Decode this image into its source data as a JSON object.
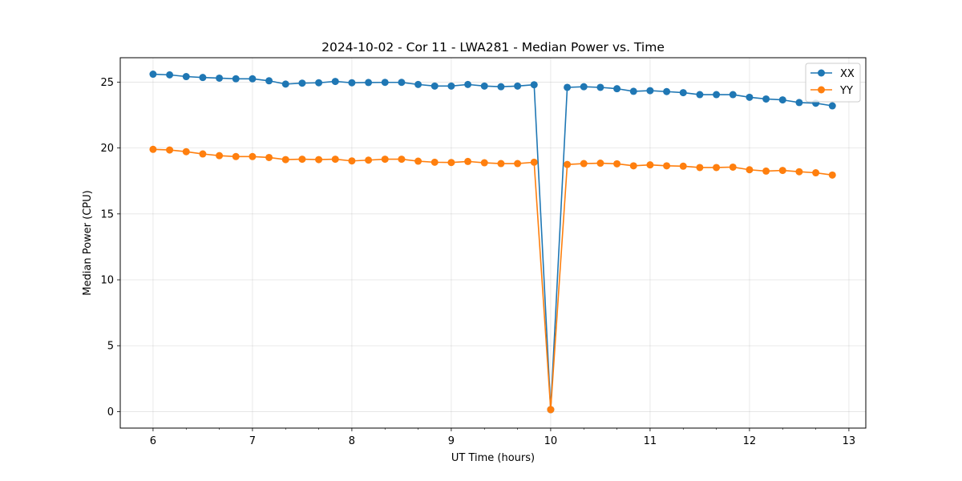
{
  "chart_data": {
    "type": "line",
    "title": "2024-10-02 - Cor 11 - LWA281 - Median Power vs. Time",
    "xlabel": "UT Time (hours)",
    "ylabel": "Median Power (CPU)",
    "xlim": [
      5.67,
      13.17
    ],
    "ylim": [
      -1.25,
      26.85
    ],
    "xticks": [
      6,
      7,
      8,
      9,
      10,
      11,
      12,
      13
    ],
    "xtick_labels": [
      "6",
      "7",
      "8",
      "9",
      "10",
      "11",
      "12",
      "13"
    ],
    "yticks": [
      0,
      5,
      10,
      15,
      20,
      25
    ],
    "ytick_labels": [
      "0",
      "5",
      "10",
      "15",
      "20",
      "25"
    ],
    "grid": true,
    "legend_position": "top-right",
    "x": [
      6.0,
      6.1667,
      6.3333,
      6.5,
      6.6667,
      6.8333,
      7.0,
      7.1667,
      7.3333,
      7.5,
      7.6667,
      7.8333,
      8.0,
      8.1667,
      8.3333,
      8.5,
      8.6667,
      8.8333,
      9.0,
      9.1667,
      9.3333,
      9.5,
      9.6667,
      9.8333,
      10.0,
      10.1667,
      10.3333,
      10.5,
      10.6667,
      10.8333,
      11.0,
      11.1667,
      11.3333,
      11.5,
      11.6667,
      11.8333,
      12.0,
      12.1667,
      12.3333,
      12.5,
      12.6667,
      12.8333
    ],
    "series": [
      {
        "name": "XX",
        "color": "#1f77b4",
        "values": [
          25.6,
          25.55,
          25.42,
          25.35,
          25.3,
          25.25,
          25.25,
          25.1,
          24.85,
          24.92,
          24.95,
          25.05,
          24.95,
          24.97,
          24.98,
          24.98,
          24.82,
          24.7,
          24.7,
          24.82,
          24.7,
          24.65,
          24.7,
          24.8,
          0.15,
          24.6,
          24.65,
          24.6,
          24.5,
          24.3,
          24.35,
          24.28,
          24.2,
          24.05,
          24.05,
          24.05,
          23.85,
          23.72,
          23.65,
          23.45,
          23.4,
          23.2
        ]
      },
      {
        "name": "YY",
        "color": "#ff7f0e",
        "values": [
          19.9,
          19.85,
          19.72,
          19.55,
          19.42,
          19.35,
          19.35,
          19.28,
          19.12,
          19.15,
          19.12,
          19.15,
          19.02,
          19.08,
          19.15,
          19.15,
          19.0,
          18.92,
          18.9,
          18.98,
          18.88,
          18.82,
          18.82,
          18.92,
          0.15,
          18.75,
          18.82,
          18.85,
          18.8,
          18.65,
          18.72,
          18.65,
          18.62,
          18.52,
          18.52,
          18.55,
          18.35,
          18.25,
          18.3,
          18.2,
          18.12,
          17.95
        ]
      }
    ]
  }
}
